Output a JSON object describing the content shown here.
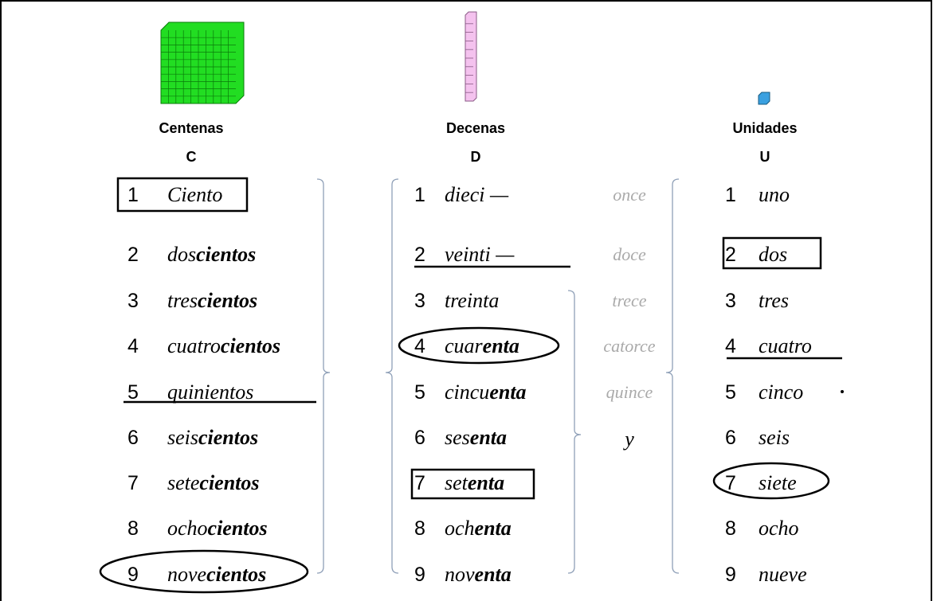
{
  "columns": [
    {
      "title": "Centenas",
      "letter": "C",
      "rows": [
        {
          "number": "1",
          "stem": "Ciento"
        },
        {
          "number": "2",
          "stem": "dos",
          "ending": "cientos"
        },
        {
          "number": "3",
          "stem": "tres",
          "ending": "cientos"
        },
        {
          "number": "4",
          "stem": "cuatro",
          "ending": "cientos"
        },
        {
          "number": "5",
          "stem": "quinientos"
        },
        {
          "number": "6",
          "stem": "seis",
          "ending": "cientos"
        },
        {
          "number": "7",
          "stem": "sete",
          "ending": "cientos"
        },
        {
          "number": "8",
          "stem": "ocho",
          "ending": "cientos"
        },
        {
          "number": "9",
          "stem": "nove",
          "ending": "cientos"
        }
      ]
    },
    {
      "title": "Decenas",
      "letter": "D",
      "rows": [
        {
          "number": "1",
          "stem": "dieci —"
        },
        {
          "number": "2",
          "stem": "veinti —"
        },
        {
          "number": "3",
          "stem": "treinta"
        },
        {
          "number": "4",
          "stem": "cuar",
          "ending": "enta"
        },
        {
          "number": "5",
          "stem": "cincu",
          "ending": "enta"
        },
        {
          "number": "6",
          "stem": "ses",
          "ending": "enta"
        },
        {
          "number": "7",
          "stem": "set",
          "ending": "enta"
        },
        {
          "number": "8",
          "stem": "och",
          "ending": "enta"
        },
        {
          "number": "9",
          "stem": "nov",
          "ending": "enta"
        }
      ]
    },
    {
      "title": "Unidades",
      "letter": "U",
      "rows": [
        {
          "number": "1",
          "stem": "uno"
        },
        {
          "number": "2",
          "stem": "dos"
        },
        {
          "number": "3",
          "stem": "tres"
        },
        {
          "number": "4",
          "stem": "cuatro"
        },
        {
          "number": "5",
          "stem": "cinco"
        },
        {
          "number": "6",
          "stem": "seis"
        },
        {
          "number": "7",
          "stem": "siete"
        },
        {
          "number": "8",
          "stem": "ocho"
        },
        {
          "number": "9",
          "stem": "nueve"
        }
      ]
    }
  ],
  "teens": [
    "once",
    "doce",
    "trece",
    "catorce",
    "quince"
  ],
  "conjunction": "y"
}
